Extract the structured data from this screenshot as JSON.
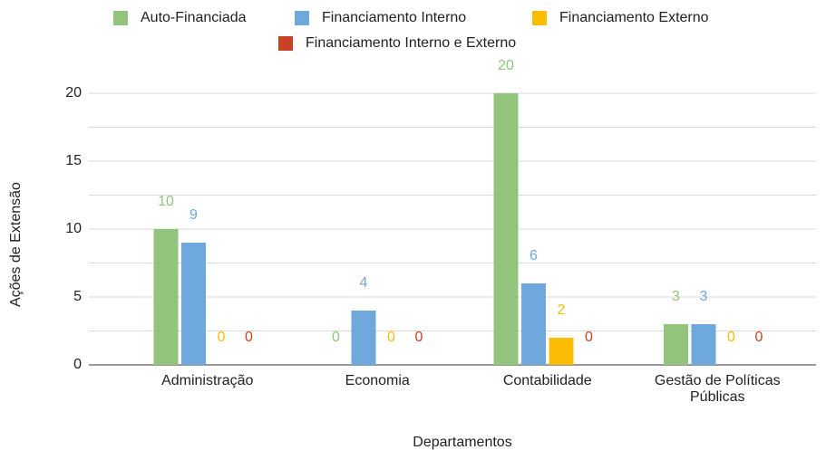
{
  "chart_data": {
    "type": "bar",
    "categories": [
      "Administração",
      "Economia",
      "Contabilidade",
      "Gestão de Políticas Públicas"
    ],
    "series": [
      {
        "name": "Auto-Financiada",
        "color": "#93c47d",
        "values": [
          10,
          0,
          20,
          3
        ]
      },
      {
        "name": "Financiamento Interno",
        "color": "#6fa8dc",
        "values": [
          9,
          4,
          6,
          3
        ]
      },
      {
        "name": "Financiamento Externo",
        "color": "#fbbc04",
        "values": [
          0,
          0,
          2,
          0
        ]
      },
      {
        "name": "Financiamento Interno e Externo",
        "color": "#cc4125",
        "values": [
          0,
          0,
          0,
          0
        ]
      }
    ],
    "xlabel": "Departamentos",
    "ylabel": "Ações de Extensão",
    "ylim": [
      0,
      20
    ],
    "yticks": [
      0,
      5,
      10,
      15,
      20
    ],
    "grid": true,
    "legend": "top"
  }
}
